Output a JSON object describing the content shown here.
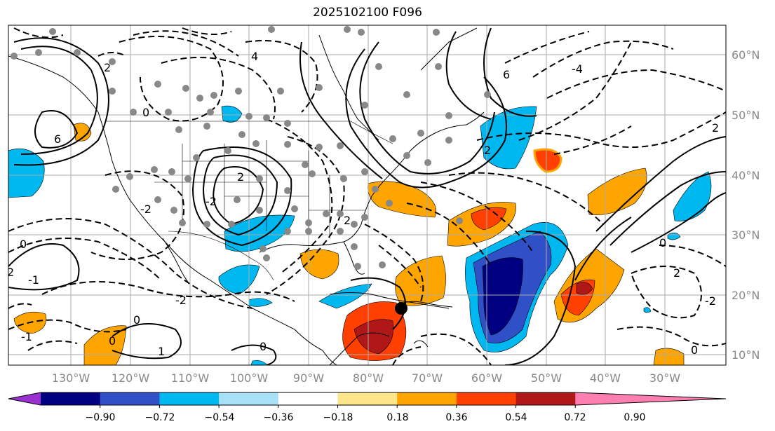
{
  "title": "2025102100 F096",
  "lat_labels": [
    "60°N",
    "50°N",
    "40°N",
    "30°N",
    "20°N",
    "10°N"
  ],
  "lon_labels": [
    "130°W",
    "120°W",
    "110°W",
    "100°W",
    "90°W",
    "80°W",
    "70°W",
    "60°W",
    "50°W",
    "40°W",
    "30°W"
  ],
  "colorbar": {
    "ticks": [
      "−0.90",
      "−0.72",
      "−0.54",
      "−0.36",
      "−0.18",
      "0.18",
      "0.36",
      "0.54",
      "0.72",
      "0.90"
    ],
    "colors": [
      "#9b30d0",
      "#000080",
      "#3050c8",
      "#00b8f0",
      "#a8e0f8",
      "#ffffff",
      "#fde58a",
      "#ffa500",
      "#ff4000",
      "#b01818",
      "#ff80b0"
    ]
  },
  "contour_labels": {
    "l1": "2",
    "l2": "4",
    "l3": "6",
    "l4": "0",
    "l5": "-2",
    "l6": "2",
    "l7": "-2",
    "l8": "0",
    "l9": "2",
    "l10": "-1",
    "l11": "0",
    "l12": "-2",
    "l13": "0",
    "l14": "1",
    "l15": "-1",
    "l16": "6",
    "l17": "2",
    "l18": "2",
    "l19": "-4",
    "l20": "0",
    "l21": "2",
    "l22": "0",
    "l23": "2",
    "l24": "-2",
    "l25": "0"
  }
}
